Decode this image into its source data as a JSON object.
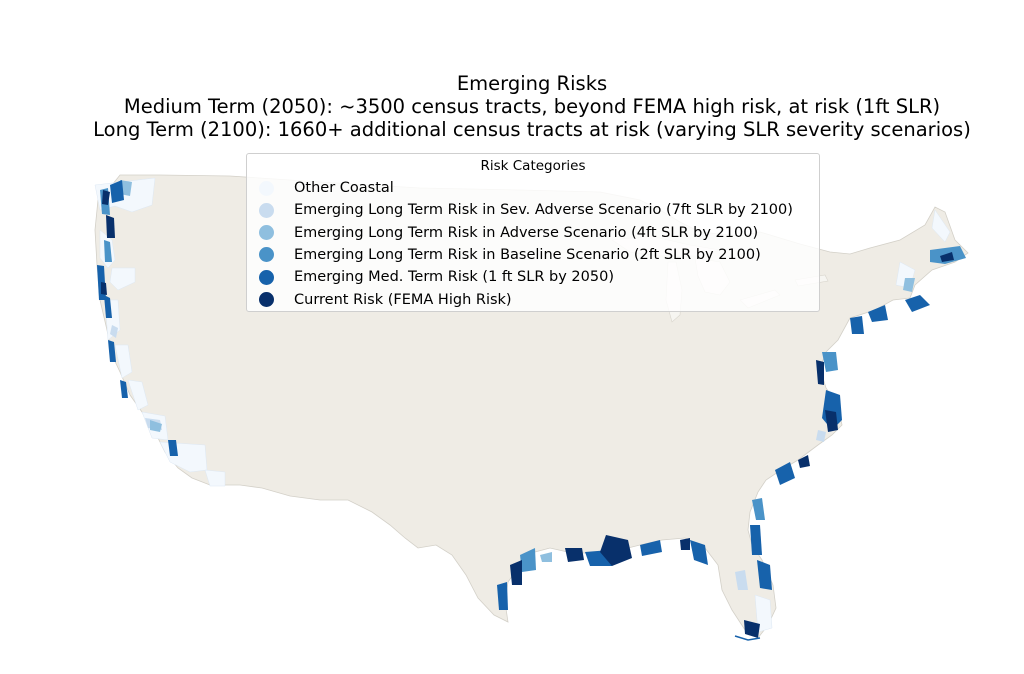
{
  "title": {
    "line1": "Emerging Risks",
    "line2": "Medium Term (2050): ~3500 census tracts, beyond FEMA high risk, at risk (1ft SLR)",
    "line3": "Long Term (2100): 1660+ additional census tracts at risk (varying SLR severity scenarios)"
  },
  "legend": {
    "title": "Risk Categories",
    "items": [
      {
        "label": "Other Coastal",
        "color": "#f3f8fd"
      },
      {
        "label": "Emerging Long Term Risk in Sev. Adverse Scenario (7ft SLR by 2100)",
        "color": "#c9dcef"
      },
      {
        "label": "Emerging Long Term Risk in Adverse Scenario (4ft SLR by 2100)",
        "color": "#8fbfdf"
      },
      {
        "label": "Emerging Long Term Risk in Baseline Scenario (2ft SLR by 2100)",
        "color": "#4a93c8"
      },
      {
        "label": "Emerging Med. Term Risk (1 ft SLR by 2050)",
        "color": "#1762ab"
      },
      {
        "label": "Current Risk (FEMA High Risk)",
        "color": "#08306b"
      }
    ]
  },
  "colors": {
    "land": "#efece5",
    "land_edge": "#c9c6be",
    "background": "#ffffff"
  }
}
